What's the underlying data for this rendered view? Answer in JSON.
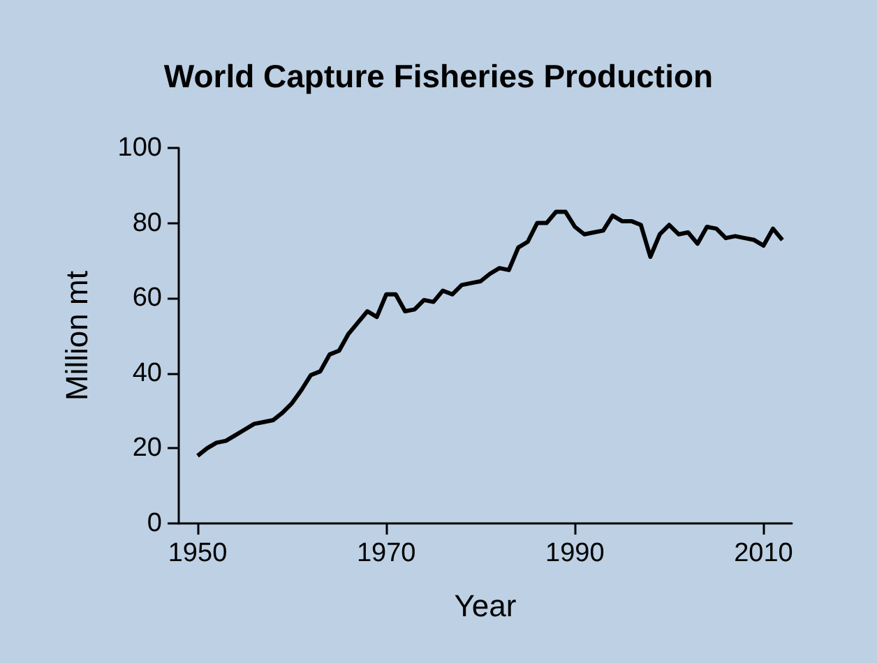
{
  "chart_data": {
    "type": "line",
    "title": "World Capture Fisheries Production",
    "xlabel": "Year",
    "ylabel": "Million mt",
    "x": [
      1950,
      1951,
      1952,
      1953,
      1954,
      1955,
      1956,
      1957,
      1958,
      1959,
      1960,
      1961,
      1962,
      1963,
      1964,
      1965,
      1966,
      1967,
      1968,
      1969,
      1970,
      1971,
      1972,
      1973,
      1974,
      1975,
      1976,
      1977,
      1978,
      1979,
      1980,
      1981,
      1982,
      1983,
      1984,
      1985,
      1986,
      1987,
      1988,
      1989,
      1990,
      1991,
      1992,
      1993,
      1994,
      1995,
      1996,
      1997,
      1998,
      1999,
      2000,
      2001,
      2002,
      2003,
      2004,
      2005,
      2006,
      2007,
      2008,
      2009,
      2010,
      2011,
      2012
    ],
    "series": [
      {
        "color": "#000000",
        "values": [
          18,
          20,
          21.5,
          22,
          23.5,
          25,
          26.5,
          27,
          27.5,
          29.5,
          32,
          35.5,
          39.5,
          40.5,
          45,
          46,
          50.5,
          53.5,
          56.5,
          55,
          61,
          61,
          56.5,
          57,
          59.5,
          59,
          62,
          61,
          63.5,
          64,
          64.5,
          66.5,
          68,
          67.5,
          73.5,
          75,
          80,
          80,
          83,
          83,
          79,
          77,
          77.5,
          78,
          82,
          80.5,
          80.5,
          79.5,
          71,
          77,
          79.5,
          77,
          77.5,
          74.5,
          79,
          78.5,
          76,
          76.5,
          76,
          75.5,
          74,
          78.5,
          75.5
        ]
      }
    ],
    "xlim": [
      1948,
      2013
    ],
    "xticks": [
      1950,
      1970,
      1990,
      2010
    ],
    "ylim": [
      0,
      100
    ],
    "yticks": [
      0,
      20,
      40,
      60,
      80,
      100
    ],
    "grid": false,
    "marker": "none",
    "line_style": "solid"
  }
}
